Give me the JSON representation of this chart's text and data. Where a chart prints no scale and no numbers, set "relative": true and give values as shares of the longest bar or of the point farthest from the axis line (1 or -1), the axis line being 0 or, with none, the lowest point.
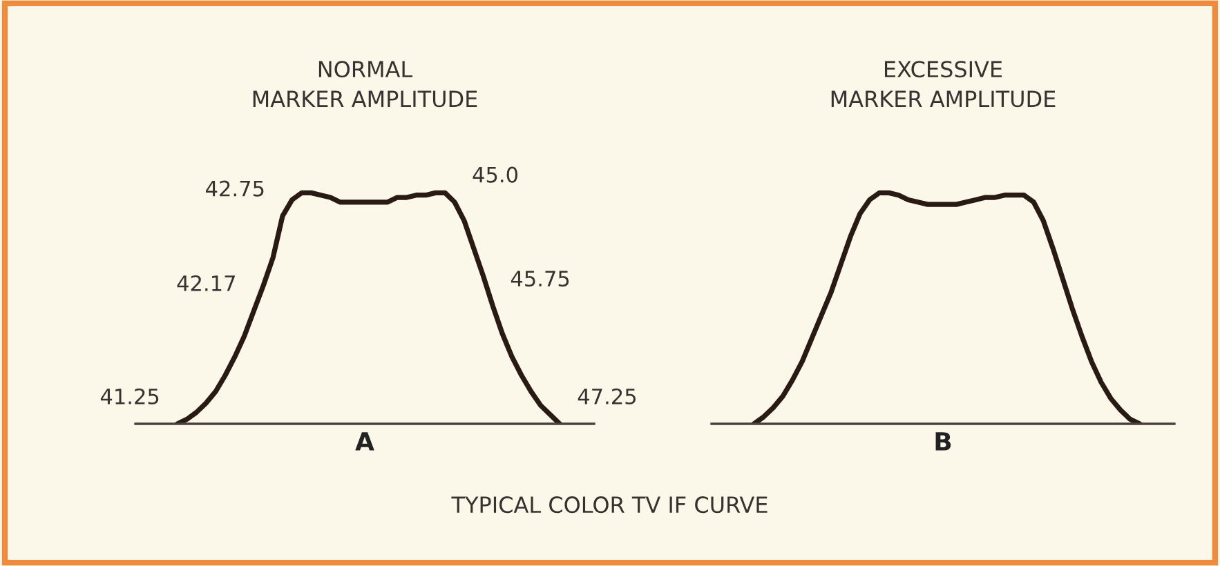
{
  "chart_data": [
    {
      "type": "line",
      "title": "NORMAL\nMARKER AMPLITUDE",
      "xlabel": "A",
      "relative": true,
      "legend": false,
      "marker": "none",
      "line_style": "solid",
      "categories": [
        null,
        null,
        null,
        null,
        null,
        null,
        null,
        null,
        null,
        null,
        null,
        null,
        null,
        null,
        null,
        null,
        null,
        null,
        null,
        null,
        null,
        null,
        null,
        null,
        null,
        null,
        null,
        null,
        null,
        null,
        null,
        null,
        null,
        null,
        null,
        null,
        null,
        null,
        null,
        null,
        null
      ],
      "series": [
        {
          "color": "#2a1a14",
          "values": [
            0,
            0.02,
            0.05,
            0.09,
            0.14,
            0.21,
            0.29,
            0.38,
            0.49,
            0.6,
            0.72,
            0.9,
            0.97,
            1,
            1,
            0.99,
            0.98,
            0.96,
            0.96,
            0.96,
            0.96,
            0.96,
            0.96,
            0.98,
            0.98,
            0.99,
            0.99,
            1,
            1,
            0.96,
            0.88,
            0.76,
            0.64,
            0.51,
            0.39,
            0.29,
            0.21,
            0.14,
            0.08,
            0.04,
            0
          ]
        }
      ],
      "annotations": [
        "41.25",
        "42.17",
        "42.75",
        "45.0",
        "45.75",
        "47.25",
        "TYPICAL COLOR TV IF CURVE"
      ]
    },
    {
      "type": "line",
      "title": "EXCESSIVE\nMARKER AMPLITUDE",
      "xlabel": "B",
      "relative": true,
      "legend": false,
      "marker": "none",
      "line_style": "solid",
      "categories": [
        null,
        null,
        null,
        null,
        null,
        null,
        null,
        null,
        null,
        null,
        null,
        null,
        null,
        null,
        null,
        null,
        null,
        null,
        null,
        null,
        null,
        null,
        null,
        null,
        null,
        null,
        null,
        null,
        null,
        null,
        null,
        null,
        null,
        null,
        null,
        null,
        null,
        null,
        null,
        null,
        null
      ],
      "series": [
        {
          "color": "#2a1a14",
          "values": [
            0,
            0.03,
            0.07,
            0.12,
            0.19,
            0.27,
            0.37,
            0.47,
            0.57,
            0.69,
            0.81,
            0.91,
            0.97,
            1,
            1,
            0.99,
            0.97,
            0.96,
            0.95,
            0.95,
            0.95,
            0.95,
            0.96,
            0.97,
            0.98,
            0.98,
            0.99,
            0.99,
            0.99,
            0.96,
            0.88,
            0.76,
            0.63,
            0.5,
            0.38,
            0.27,
            0.18,
            0.11,
            0.06,
            0.02,
            0
          ]
        }
      ]
    }
  ]
}
